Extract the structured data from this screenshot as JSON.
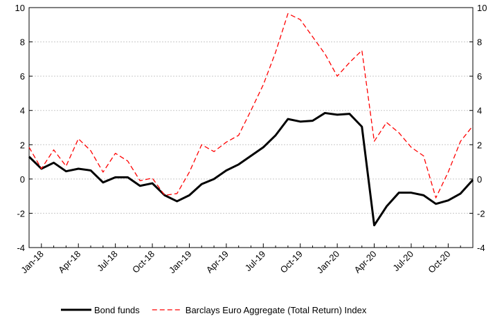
{
  "chart_data": {
    "type": "line",
    "categories": [
      null,
      "Jan-18",
      null,
      null,
      "Apr-18",
      null,
      null,
      "Jul-18",
      null,
      null,
      "Oct-18",
      null,
      null,
      "Jan-19",
      null,
      null,
      "Apr-19",
      null,
      null,
      "Jul-19",
      null,
      null,
      "Oct-19",
      null,
      null,
      "Jan-20",
      null,
      null,
      "Apr-20",
      null,
      null,
      "Jul-20",
      null,
      null,
      "Oct-20",
      null,
      null
    ],
    "series": [
      {
        "name": "Bond funds",
        "color": "#000000",
        "line_style": "solid",
        "values": [
          1.3,
          0.6,
          0.95,
          0.45,
          0.6,
          0.5,
          -0.2,
          0.1,
          0.1,
          -0.4,
          -0.25,
          -0.95,
          -1.3,
          -0.95,
          -0.3,
          0.0,
          0.5,
          0.85,
          1.35,
          1.85,
          2.55,
          3.5,
          3.35,
          3.4,
          3.85,
          3.75,
          3.8,
          3.05,
          -2.7,
          -1.6,
          -0.8,
          -0.8,
          -0.95,
          -1.45,
          -1.25,
          -0.85,
          -0.05
        ]
      },
      {
        "name": "Barclays Euro Aggregate (Total Return) Index",
        "color": "#ff0000",
        "line_style": "dashed",
        "values": [
          1.85,
          0.6,
          1.7,
          0.75,
          2.35,
          1.65,
          0.4,
          1.5,
          1.05,
          -0.1,
          0.05,
          -0.95,
          -0.85,
          0.4,
          2.0,
          1.6,
          2.15,
          2.55,
          4.0,
          5.5,
          7.4,
          9.65,
          9.3,
          8.3,
          7.3,
          6.0,
          6.8,
          7.5,
          2.2,
          3.3,
          2.7,
          1.85,
          1.35,
          -1.1,
          0.4,
          2.2,
          3.1
        ]
      }
    ],
    "ylim": [
      -4,
      10
    ],
    "yticks": [
      -4,
      -2,
      0,
      2,
      4,
      6,
      8,
      10
    ],
    "y2lim": [
      -4,
      10
    ],
    "y2ticks": [
      -4,
      -2,
      0,
      2,
      4,
      6,
      8,
      10
    ],
    "grid": true,
    "legend": "bottom"
  }
}
